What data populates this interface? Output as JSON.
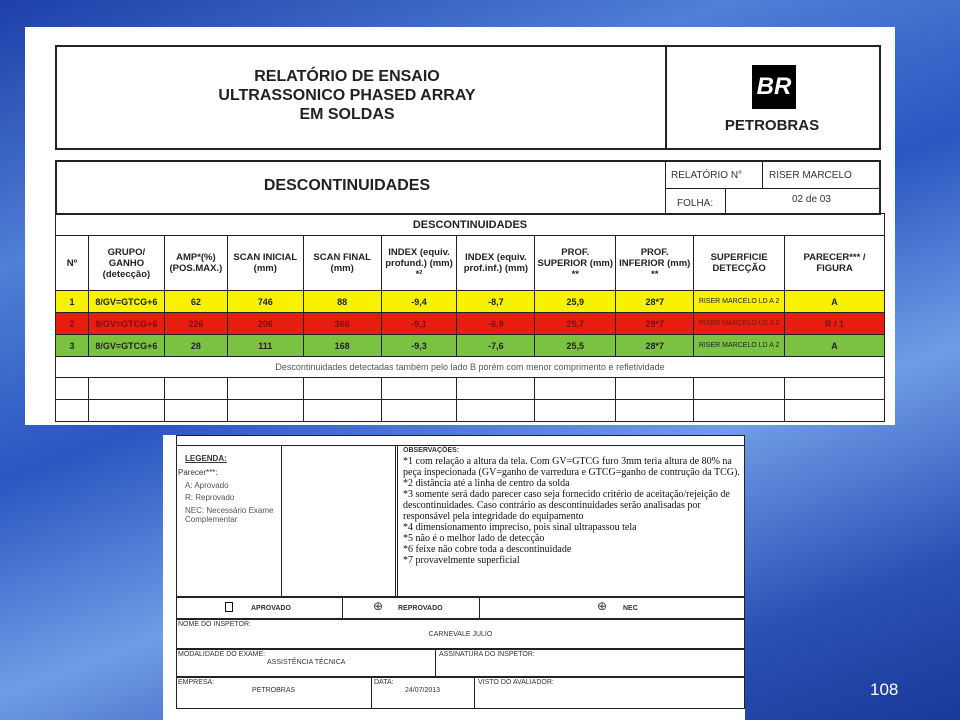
{
  "header": {
    "title_lines": [
      "RELATÓRIO DE ENSAIO",
      "ULTRASSONICO PHASED ARRAY",
      "EM SOLDAS"
    ],
    "logo_text": "PETROBRAS",
    "logo_mark": "BR"
  },
  "section": {
    "title": "DESCONTINUIDADES",
    "relatorio_label": "RELATÓRIO N°",
    "relatorio_value": "RISER MARCELO",
    "folha_label": "FOLHA:",
    "folha_value": "02 de 03"
  },
  "table": {
    "title": "DESCONTINUIDADES",
    "columns": [
      "Nº",
      "GRUPO/ GANHO (detecção)",
      "AMP*(%) (POS.MAX.)",
      "SCAN INICIAL (mm)",
      "SCAN FINAL (mm)",
      "INDEX (equiv. profund.) (mm) *²",
      "INDEX (equiv. prof.inf.) (mm)",
      "PROF. SUPERIOR (mm) **",
      "PROF. INFERIOR (mm) **",
      "SUPERFICIE DETECÇÃO",
      "PARECER*** / FIGURA"
    ],
    "rows": [
      {
        "n": "1",
        "grupo": "8/GV=GTCG+6",
        "amp": "62",
        "scan_ini": "746",
        "scan_fin": "88",
        "index1": "-9,4",
        "index2": "-8,7",
        "prof_sup": "25,9",
        "prof_inf": "28*7",
        "superficie": "RISER MARCELO LD A 2",
        "parecer": "A",
        "color": "#f6f200"
      },
      {
        "n": "2",
        "grupo": "8/GV=GTCG+6",
        "amp": "226",
        "scan_ini": "206",
        "scan_fin": "366",
        "index1": "-9,1",
        "index2": "-6,9",
        "prof_sup": "25,7",
        "prof_inf": "28*7",
        "superficie": "RISER MARCELO LD A 2",
        "parecer": "R / 1",
        "color": "#e81d10"
      },
      {
        "n": "3",
        "grupo": "8/GV=GTCG+6",
        "amp": "28",
        "scan_ini": "111",
        "scan_fin": "168",
        "index1": "-9,3",
        "index2": "-7,6",
        "prof_sup": "25,5",
        "prof_inf": "28*7",
        "superficie": "RISER MARCELO LD A 2",
        "parecer": "A",
        "color": "#7cc242"
      }
    ],
    "note": "Descontinuidades detectadas também pelo lado B porém com menor comprimento e refletividade"
  },
  "legend": {
    "title": "LEGENDA:",
    "parecer": "Parecer***:",
    "items": [
      "A: Aprovado",
      "R: Reprovado",
      "NEC: Necessário Exame Complementar"
    ]
  },
  "obs": {
    "title": "OBSERVAÇÕES:",
    "items": [
      "*1 com relação a altura da tela. Com GV=GTCG furo 3mm teria altura de 80% na peça inspecionada (GV=ganho de varredura e GTCG=ganho de contrução da TCG).",
      "*2 distância até a linha de centro da solda",
      "*3 somente será dado parecer caso seja fornecido critério de aceitação/rejeição de descontinuidades. Caso contrário as descontinuidades serão analisadas por responsável pela integridade do equipamento",
      "*4 dimensionamento impreciso, pois sinal ultrapassou tela",
      "*5 não é o melhor lado de detecção",
      "*6 feixe não cobre toda a descontinuidade",
      "*7 provavelmente superficial"
    ]
  },
  "result": {
    "aprovado": "APROVADO",
    "reprovado": "REPROVADO",
    "nec": "NEC"
  },
  "footer": {
    "inspetor_label": "NOME DO INSPETOR:",
    "inspetor": "CARNEVALE JULIO",
    "modalidade_label": "MODALIDADE DO EXAME:",
    "modalidade": "ASSISTÊNCIA TÉCNICA",
    "assinatura_label": "ASSINATURA DO INSPETOR:",
    "empresa_label": "EMPRESA:",
    "empresa": "PETROBRAS",
    "data_label": "DATA:",
    "data": "24/07/2013",
    "visto_label": "VISTO DO AVALIADOR:"
  },
  "slide": {
    "page_number": "108"
  }
}
